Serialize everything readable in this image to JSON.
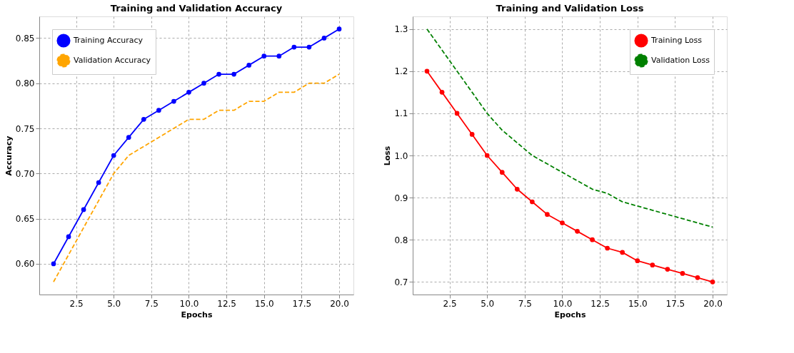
{
  "chart_data": [
    {
      "type": "line",
      "title": "Training and Validation Accuracy",
      "xlabel": "Epochs",
      "ylabel": "Accuracy",
      "grid": true,
      "legend": "top left",
      "x": [
        1,
        2,
        3,
        4,
        5,
        6,
        7,
        8,
        9,
        10,
        11,
        12,
        13,
        14,
        15,
        16,
        17,
        18,
        19,
        20
      ],
      "xlim": [
        0.05,
        20.95
      ],
      "ylim": [
        0.566,
        0.874
      ],
      "xticks": [
        2.5,
        {
          "value": 5,
          "label": "5.0"
        },
        7.5,
        {
          "value": 10,
          "label": "10.0"
        },
        12.5,
        {
          "value": 15,
          "label": "15.0"
        },
        17.5,
        {
          "value": 20,
          "label": "20.0"
        }
      ],
      "yticks": [
        {
          "value": 0.6,
          "label": "0.60"
        },
        0.65,
        {
          "value": 0.7,
          "label": "0.70"
        },
        0.75,
        {
          "value": 0.8,
          "label": "0.80"
        },
        0.85
      ],
      "series": [
        {
          "name": "Training Accuracy",
          "color": "#0000ff",
          "marker": "circle",
          "line_style": "solid",
          "values": [
            0.6,
            0.63,
            0.66,
            0.69,
            0.72,
            0.74,
            0.76,
            0.77,
            0.78,
            0.79,
            0.8,
            0.81,
            0.81,
            0.82,
            0.83,
            0.83,
            0.84,
            0.84,
            0.85,
            0.86
          ]
        },
        {
          "name": "Validation Accuracy",
          "color": "#ffa500",
          "marker": "none",
          "line_style": "dashed",
          "values": [
            0.58,
            0.61,
            0.64,
            0.67,
            0.7,
            0.72,
            0.73,
            0.74,
            0.75,
            0.76,
            0.76,
            0.77,
            0.77,
            0.78,
            0.78,
            0.79,
            0.79,
            0.8,
            0.8,
            0.81
          ]
        }
      ]
    },
    {
      "type": "line",
      "title": "Training and Validation Loss",
      "xlabel": "Epochs",
      "ylabel": "Loss",
      "grid": true,
      "legend": "top right",
      "x": [
        1,
        2,
        3,
        4,
        5,
        6,
        7,
        8,
        9,
        10,
        11,
        12,
        13,
        14,
        15,
        16,
        17,
        18,
        19,
        20
      ],
      "xlim": [
        0.05,
        20.95
      ],
      "ylim": [
        0.67,
        1.33
      ],
      "xticks": [
        2.5,
        {
          "value": 5,
          "label": "5.0"
        },
        7.5,
        {
          "value": 10,
          "label": "10.0"
        },
        12.5,
        {
          "value": 15,
          "label": "15.0"
        },
        17.5,
        {
          "value": 20,
          "label": "20.0"
        }
      ],
      "yticks": [
        0.7,
        0.8,
        0.9,
        {
          "value": 1,
          "label": "1.0"
        },
        1.1,
        1.2,
        1.3
      ],
      "series": [
        {
          "name": "Training Loss",
          "color": "#ff0000",
          "marker": "circle",
          "line_style": "solid",
          "values": [
            1.2,
            1.15,
            1.1,
            1.05,
            1.0,
            0.96,
            0.92,
            0.89,
            0.86,
            0.84,
            0.82,
            0.8,
            0.78,
            0.77,
            0.75,
            0.74,
            0.73,
            0.72,
            0.71,
            0.7
          ]
        },
        {
          "name": "Validation Loss",
          "color": "#008000",
          "marker": "none",
          "line_style": "dashed",
          "values": [
            1.3,
            1.25,
            1.2,
            1.15,
            1.1,
            1.06,
            1.03,
            1.0,
            0.98,
            0.96,
            0.94,
            0.92,
            0.91,
            0.89,
            0.88,
            0.87,
            0.86,
            0.85,
            0.84,
            0.83
          ]
        }
      ]
    }
  ]
}
